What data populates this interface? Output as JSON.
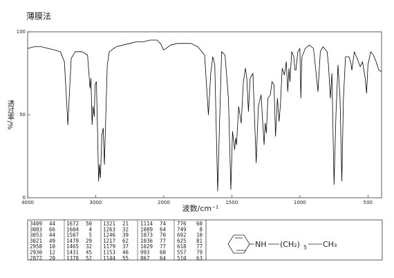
{
  "chart_data": {
    "type": "line",
    "title": "薄膜法",
    "xlabel": "波数/cm⁻¹",
    "ylabel": "透过率/%",
    "color": "#000000",
    "grid": false,
    "xlim": [
      4000,
      400
    ],
    "x_scale_break": 2000,
    "ylim": [
      0,
      100
    ],
    "xticks": [
      4000,
      3000,
      2000,
      1500,
      1000,
      500
    ],
    "yticks": [
      0,
      50,
      100
    ],
    "x": [
      4000,
      3900,
      3800,
      3700,
      3600,
      3520,
      3460,
      3430,
      3409,
      3390,
      3360,
      3300,
      3200,
      3120,
      3083,
      3070,
      3053,
      3040,
      3021,
      3010,
      2990,
      2970,
      2958,
      2945,
      2930,
      2910,
      2890,
      2872,
      2855,
      2830,
      2800,
      2700,
      2600,
      2500,
      2400,
      2300,
      2200,
      2100,
      2050,
      2000,
      1950,
      1900,
      1850,
      1800,
      1750,
      1700,
      1672,
      1655,
      1640,
      1625,
      1604,
      1590,
      1575,
      1550,
      1525,
      1507,
      1495,
      1479,
      1472,
      1465,
      1450,
      1431,
      1415,
      1400,
      1390,
      1378,
      1365,
      1345,
      1321,
      1305,
      1285,
      1263,
      1255,
      1246,
      1235,
      1217,
      1205,
      1190,
      1179,
      1165,
      1153,
      1144,
      1130,
      1114,
      1100,
      1089,
      1080,
      1073,
      1060,
      1045,
      1036,
      1029,
      1015,
      1000,
      993,
      985,
      960,
      930,
      900,
      867,
      850,
      830,
      800,
      790,
      776,
      765,
      749,
      735,
      720,
      705,
      692,
      680,
      665,
      640,
      625,
      618,
      600,
      580,
      557,
      540,
      520,
      510,
      500,
      480,
      460,
      440,
      420,
      400
    ],
    "values": [
      90,
      91,
      91,
      90,
      89,
      88,
      82,
      60,
      44,
      60,
      84,
      88,
      88,
      86,
      66,
      72,
      44,
      55,
      49,
      68,
      70,
      35,
      10,
      20,
      12,
      38,
      42,
      20,
      45,
      80,
      88,
      91,
      92,
      93,
      94,
      94,
      95,
      95,
      93,
      89,
      92,
      93,
      93,
      93,
      91,
      86,
      50,
      75,
      85,
      80,
      4,
      45,
      88,
      86,
      60,
      5,
      40,
      29,
      36,
      32,
      55,
      45,
      70,
      78,
      72,
      52,
      72,
      75,
      21,
      55,
      62,
      32,
      45,
      39,
      60,
      62,
      70,
      68,
      37,
      60,
      46,
      55,
      78,
      74,
      82,
      64,
      78,
      70,
      88,
      85,
      77,
      77,
      88,
      90,
      60,
      85,
      90,
      92,
      90,
      64,
      88,
      91,
      88,
      80,
      60,
      75,
      8,
      50,
      80,
      60,
      10,
      60,
      85,
      85,
      81,
      77,
      88,
      84,
      79,
      82,
      72,
      63,
      80,
      88,
      86,
      82,
      77,
      76
    ]
  },
  "table": {
    "peaks": [
      [
        3409,
        44
      ],
      [
        3083,
        66
      ],
      [
        3053,
        44
      ],
      [
        3021,
        49
      ],
      [
        2958,
        10
      ],
      [
        2930,
        12
      ],
      [
        2872,
        20
      ],
      [
        1672,
        50
      ],
      [
        1604,
        4
      ],
      [
        1507,
        5
      ],
      [
        1479,
        29
      ],
      [
        1465,
        32
      ],
      [
        1431,
        45
      ],
      [
        1378,
        52
      ],
      [
        1321,
        21
      ],
      [
        1263,
        32
      ],
      [
        1246,
        39
      ],
      [
        1217,
        62
      ],
      [
        1179,
        37
      ],
      [
        1153,
        46
      ],
      [
        1144,
        55
      ],
      [
        1114,
        74
      ],
      [
        1089,
        64
      ],
      [
        1073,
        70
      ],
      [
        1036,
        77
      ],
      [
        1029,
        77
      ],
      [
        993,
        60
      ],
      [
        867,
        64
      ],
      [
        776,
        60
      ],
      [
        749,
        8
      ],
      [
        692,
        10
      ],
      [
        625,
        81
      ],
      [
        618,
        77
      ],
      [
        557,
        79
      ],
      [
        510,
        63
      ]
    ]
  },
  "structure": {
    "amine": "NH",
    "chain": "(CH₂)",
    "repeat": "5",
    "terminal": "CH₃"
  }
}
